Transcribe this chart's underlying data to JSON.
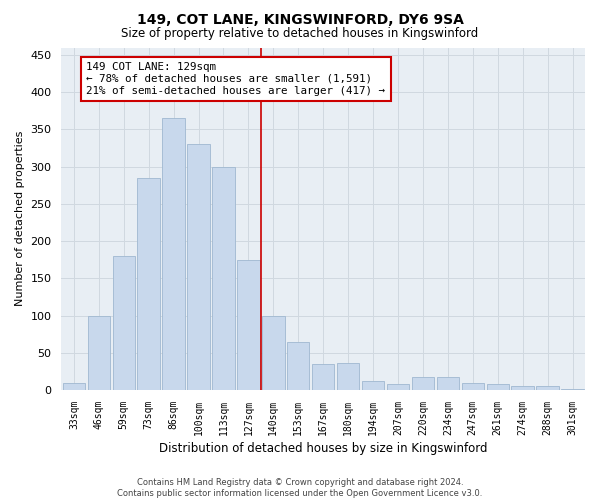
{
  "title1": "149, COT LANE, KINGSWINFORD, DY6 9SA",
  "title2": "Size of property relative to detached houses in Kingswinford",
  "xlabel": "Distribution of detached houses by size in Kingswinford",
  "ylabel": "Number of detached properties",
  "categories": [
    "33sqm",
    "46sqm",
    "59sqm",
    "73sqm",
    "86sqm",
    "100sqm",
    "113sqm",
    "127sqm",
    "140sqm",
    "153sqm",
    "167sqm",
    "180sqm",
    "194sqm",
    "207sqm",
    "220sqm",
    "234sqm",
    "247sqm",
    "261sqm",
    "274sqm",
    "288sqm",
    "301sqm"
  ],
  "values": [
    10,
    100,
    180,
    285,
    365,
    330,
    300,
    175,
    100,
    65,
    35,
    37,
    12,
    8,
    18,
    18,
    10,
    8,
    5,
    5,
    2
  ],
  "bar_color": "#c8d8ec",
  "bar_edge_color": "#a0b8d0",
  "grid_color": "#d0d8e0",
  "vline_x_index": 7.5,
  "vline_color": "#cc0000",
  "annotation_text": "149 COT LANE: 129sqm\n← 78% of detached houses are smaller (1,591)\n21% of semi-detached houses are larger (417) →",
  "annotation_box_color": "#ffffff",
  "annotation_box_edge_color": "#cc0000",
  "footer1": "Contains HM Land Registry data © Crown copyright and database right 2024.",
  "footer2": "Contains public sector information licensed under the Open Government Licence v3.0.",
  "ylim": [
    0,
    460
  ],
  "yticks": [
    0,
    50,
    100,
    150,
    200,
    250,
    300,
    350,
    400,
    450
  ],
  "bg_color": "#ffffff",
  "plot_bg_color": "#e8eef4"
}
